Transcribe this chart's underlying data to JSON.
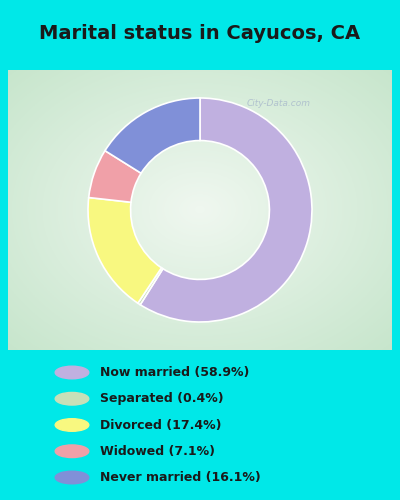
{
  "title": "Marital status in Cayucos, CA",
  "slices": [
    {
      "label": "Now married (58.9%)",
      "value": 58.9,
      "color": "#c0b0e0"
    },
    {
      "label": "Separated (0.4%)",
      "value": 0.4,
      "color": "#c8e0b8"
    },
    {
      "label": "Divorced (17.4%)",
      "value": 17.4,
      "color": "#f8f880"
    },
    {
      "label": "Widowed (7.1%)",
      "value": 7.1,
      "color": "#f0a0a8"
    },
    {
      "label": "Never married (16.1%)",
      "value": 16.1,
      "color": "#8090d8"
    }
  ],
  "legend_colors": [
    "#c0b0e0",
    "#c8e0b8",
    "#f8f880",
    "#f0a0a8",
    "#8090d8"
  ],
  "legend_labels": [
    "Now married (58.9%)",
    "Separated (0.4%)",
    "Divorced (17.4%)",
    "Widowed (7.1%)",
    "Never married (16.1%)"
  ],
  "bg_cyan": "#00e8e8",
  "title_fontsize": 14,
  "watermark": "City-Data.com",
  "start_angle": 90,
  "donut_width": 0.38
}
